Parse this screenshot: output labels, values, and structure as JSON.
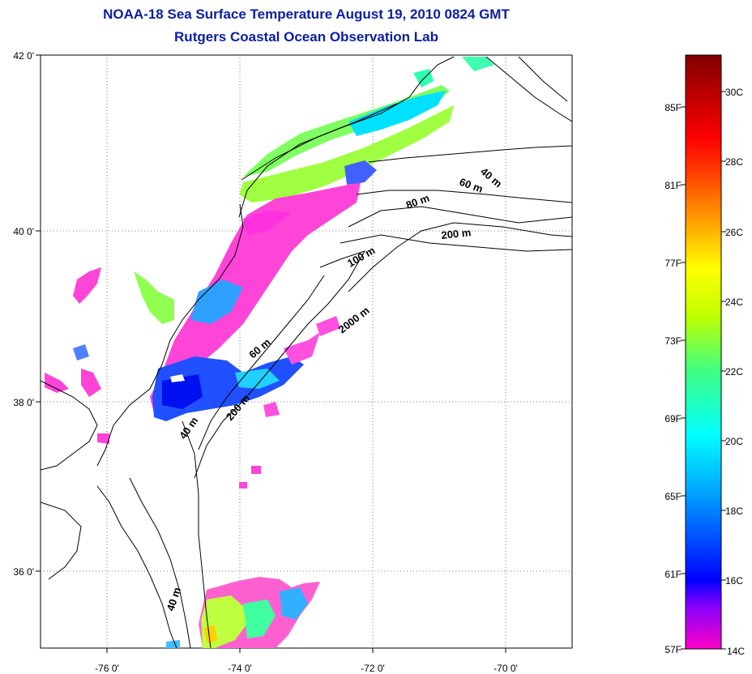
{
  "header": {
    "title": "NOAA-18 Sea Surface Temperature August 19, 2010 0824 GMT",
    "subtitle": "Rutgers Coastal Ocean Observation Lab"
  },
  "map": {
    "lon_labels": [
      "-76 0'",
      "-74 0'",
      "-72 0'",
      "-70 0'"
    ],
    "lat_labels": [
      "42 0'",
      "40 0'",
      "38 0'",
      "36 0'"
    ],
    "depth_labels": [
      "40 m",
      "60 m",
      "80 m",
      "200 m",
      "100 m",
      "2000 m",
      "60 m",
      "200 m",
      "40 m",
      "40 m"
    ]
  },
  "colorbar": {
    "fahrenheit": [
      "85F",
      "81F",
      "77F",
      "73F",
      "69F",
      "65F",
      "61F",
      "57F"
    ],
    "celsius": [
      "30C",
      "28C",
      "26C",
      "24C",
      "22C",
      "20C",
      "18C",
      "16C",
      "14C"
    ],
    "colors": [
      "#ff00c8",
      "#8000ff",
      "#0000ff",
      "#00a0ff",
      "#00ffff",
      "#40ff80",
      "#c0ff00",
      "#ffff00",
      "#ffa000",
      "#ff4000",
      "#ff0000",
      "#c00000",
      "#800000"
    ]
  }
}
